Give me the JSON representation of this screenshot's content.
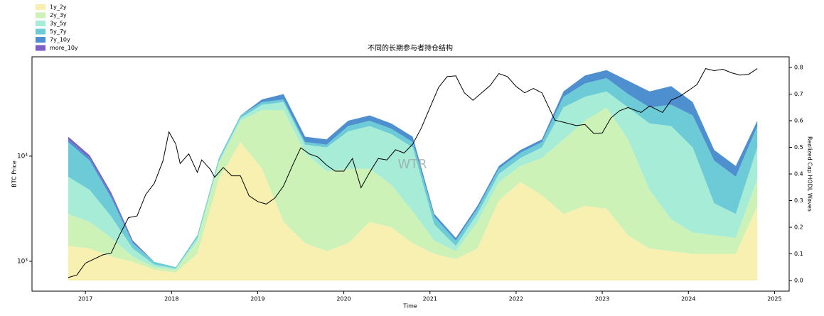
{
  "chart_data": {
    "type": "stacked-area-line",
    "title": "不同的长期参与者持仓结构",
    "xlabel": "Time",
    "ylabel": "BTC Price",
    "y2label": "Realized Cap HODL Waves",
    "watermark": "WTR",
    "xlim": [
      2016.38,
      2025.17
    ],
    "xticks": [
      2017,
      2018,
      2019,
      2020,
      2021,
      2022,
      2023,
      2024,
      2025
    ],
    "ylim": [
      520,
      88000
    ],
    "yscale": "log",
    "yticks": [
      {
        "value": 1000,
        "label": "10³"
      },
      {
        "value": 10000,
        "label": "10⁴"
      }
    ],
    "y2lim": [
      -0.04,
      0.84
    ],
    "y2ticks": [
      {
        "value": 0,
        "label": "0.0"
      },
      0.1,
      0.2,
      0.3,
      0.4,
      0.5,
      0.6,
      0.7,
      0.8
    ],
    "legend": "upper-left",
    "x": [
      2016.8,
      2017.05,
      2017.3,
      2017.55,
      2017.8,
      2018.05,
      2018.3,
      2018.55,
      2018.8,
      2019.05,
      2019.3,
      2019.55,
      2019.8,
      2020.05,
      2020.3,
      2020.55,
      2020.8,
      2021.05,
      2021.3,
      2021.55,
      2021.8,
      2022.05,
      2022.3,
      2022.55,
      2022.8,
      2023.05,
      2023.3,
      2023.55,
      2023.8,
      2024.05,
      2024.3,
      2024.55,
      2024.8
    ],
    "series": [
      {
        "name": "1y_2y",
        "color": "#f8f0b0",
        "axis": "y2",
        "values": [
          0.13,
          0.12,
          0.09,
          0.07,
          0.04,
          0.03,
          0.1,
          0.38,
          0.52,
          0.42,
          0.22,
          0.14,
          0.11,
          0.14,
          0.22,
          0.2,
          0.14,
          0.1,
          0.08,
          0.12,
          0.3,
          0.37,
          0.32,
          0.25,
          0.28,
          0.27,
          0.17,
          0.12,
          0.11,
          0.1,
          0.1,
          0.1,
          0.28
        ]
      },
      {
        "name": "2y_3y",
        "color": "#ccf2b8",
        "axis": "y2",
        "values": [
          0.12,
          0.1,
          0.07,
          0.02,
          0.01,
          0.01,
          0.05,
          0.06,
          0.08,
          0.22,
          0.42,
          0.34,
          0.3,
          0.28,
          0.2,
          0.16,
          0.12,
          0.05,
          0.03,
          0.1,
          0.07,
          0.06,
          0.14,
          0.28,
          0.32,
          0.38,
          0.36,
          0.22,
          0.12,
          0.08,
          0.07,
          0.06,
          0.1
        ]
      },
      {
        "name": "3y_5y",
        "color": "#a6ecd6",
        "axis": "y2",
        "values": [
          0.14,
          0.12,
          0.08,
          0.03,
          0.01,
          0.005,
          0.01,
          0.01,
          0.01,
          0.02,
          0.03,
          0.03,
          0.09,
          0.14,
          0.16,
          0.19,
          0.24,
          0.06,
          0.02,
          0.03,
          0.03,
          0.03,
          0.04,
          0.12,
          0.09,
          0.06,
          0.12,
          0.25,
          0.35,
          0.32,
          0.12,
          0.09,
          0.12
        ]
      },
      {
        "name": "5y_7y",
        "color": "#6ccbd6",
        "axis": "y2",
        "values": [
          0.13,
          0.11,
          0.07,
          0.02,
          0.01,
          0.005,
          0.01,
          0.01,
          0.01,
          0.01,
          0.01,
          0.01,
          0.01,
          0.02,
          0.02,
          0.02,
          0.02,
          0.03,
          0.02,
          0.02,
          0.02,
          0.02,
          0.02,
          0.04,
          0.05,
          0.05,
          0.05,
          0.06,
          0.08,
          0.12,
          0.16,
          0.14,
          0.08
        ]
      },
      {
        "name": "7y_10y",
        "color": "#4e8fcf",
        "axis": "y2",
        "values": [
          0.01,
          0.01,
          0.01,
          0.005,
          0,
          0,
          0,
          0,
          0,
          0.01,
          0.02,
          0.02,
          0.02,
          0.02,
          0.02,
          0.02,
          0.02,
          0.01,
          0.01,
          0.01,
          0.01,
          0.01,
          0.01,
          0.02,
          0.03,
          0.03,
          0.05,
          0.06,
          0.07,
          0.05,
          0.04,
          0.04,
          0.02
        ]
      },
      {
        "name": "more_10y",
        "color": "#7b5fc4",
        "axis": "y2",
        "values": [
          0.01,
          0.01,
          0.01,
          0.005,
          0,
          0,
          0,
          0,
          0,
          0,
          0,
          0,
          0,
          0,
          0,
          0,
          0,
          0,
          0,
          0,
          0,
          0,
          0,
          0,
          0,
          0,
          0,
          0,
          0,
          0,
          0,
          0,
          0
        ]
      }
    ],
    "price": {
      "color": "#000000",
      "x": [
        2016.8,
        2016.9,
        2017.0,
        2017.1,
        2017.2,
        2017.3,
        2017.4,
        2017.5,
        2017.6,
        2017.7,
        2017.8,
        2017.9,
        2017.97,
        2018.05,
        2018.1,
        2018.2,
        2018.3,
        2018.35,
        2018.45,
        2018.5,
        2018.6,
        2018.7,
        2018.8,
        2018.9,
        2019.0,
        2019.1,
        2019.2,
        2019.3,
        2019.4,
        2019.5,
        2019.6,
        2019.7,
        2019.8,
        2019.9,
        2020.0,
        2020.1,
        2020.2,
        2020.3,
        2020.4,
        2020.5,
        2020.6,
        2020.7,
        2020.8,
        2020.9,
        2021.0,
        2021.1,
        2021.2,
        2021.3,
        2021.4,
        2021.5,
        2021.6,
        2021.7,
        2021.8,
        2021.9,
        2022.0,
        2022.1,
        2022.2,
        2022.3,
        2022.45,
        2022.55,
        2022.7,
        2022.8,
        2022.9,
        2023.0,
        2023.1,
        2023.2,
        2023.3,
        2023.45,
        2023.55,
        2023.7,
        2023.8,
        2023.9,
        2024.0,
        2024.1,
        2024.2,
        2024.3,
        2024.4,
        2024.5,
        2024.6,
        2024.7,
        2024.8
      ],
      "values": [
        700,
        740,
        960,
        1050,
        1150,
        1200,
        1800,
        2600,
        2700,
        4300,
        5500,
        9000,
        17000,
        13000,
        8500,
        10500,
        7000,
        9200,
        7500,
        6300,
        7800,
        6500,
        6500,
        4200,
        3700,
        3500,
        4000,
        5200,
        8000,
        12000,
        10500,
        9800,
        8200,
        7200,
        7200,
        9500,
        5000,
        7000,
        9500,
        9200,
        11500,
        10700,
        13000,
        18500,
        29000,
        45000,
        57000,
        58000,
        40000,
        34000,
        40000,
        47000,
        61000,
        57000,
        46000,
        40000,
        44000,
        40000,
        22000,
        21000,
        19500,
        20000,
        16500,
        16600,
        23000,
        27000,
        29000,
        26000,
        30000,
        26000,
        34000,
        37000,
        42000,
        48000,
        68000,
        65000,
        67000,
        62000,
        59000,
        60000,
        68000
      ]
    }
  }
}
